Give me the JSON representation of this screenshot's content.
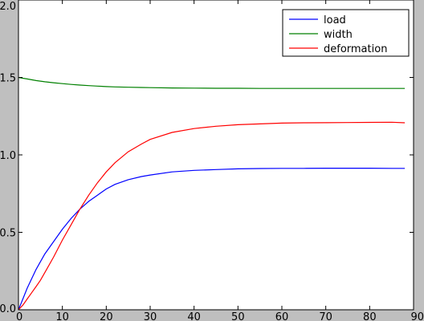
{
  "chart_data": {
    "type": "line",
    "title": "",
    "xlabel": "",
    "ylabel": "",
    "xlim": [
      0,
      90
    ],
    "ylim": [
      0.0,
      2.0
    ],
    "xticks": [
      0,
      10,
      20,
      30,
      40,
      50,
      60,
      70,
      80,
      90
    ],
    "yticks": [
      0.0,
      0.5,
      1.0,
      1.5,
      2.0
    ],
    "xtick_labels": [
      "0",
      "10",
      "20",
      "30",
      "40",
      "50",
      "60",
      "70",
      "80",
      "90"
    ],
    "ytick_labels": [
      "0.0",
      "0.5",
      "1.0",
      "1.5",
      "2.0"
    ],
    "grid": false,
    "legend_position": "top-right",
    "x": [
      0,
      1,
      2,
      3,
      4,
      5,
      6,
      8,
      10,
      12,
      14,
      16,
      18,
      20,
      22,
      25,
      28,
      30,
      35,
      40,
      45,
      50,
      55,
      60,
      65,
      70,
      75,
      80,
      85,
      88
    ],
    "series": [
      {
        "name": "load",
        "color": "#0000ff",
        "values": [
          0.0,
          0.07,
          0.14,
          0.2,
          0.26,
          0.31,
          0.36,
          0.44,
          0.52,
          0.59,
          0.65,
          0.7,
          0.74,
          0.78,
          0.81,
          0.84,
          0.86,
          0.87,
          0.89,
          0.9,
          0.905,
          0.91,
          0.912,
          0.913,
          0.913,
          0.914,
          0.914,
          0.914,
          0.913,
          0.913
        ]
      },
      {
        "name": "width",
        "color": "#008000",
        "values": [
          1.5,
          1.495,
          1.49,
          1.485,
          1.48,
          1.476,
          1.472,
          1.466,
          1.46,
          1.455,
          1.451,
          1.447,
          1.444,
          1.441,
          1.439,
          1.437,
          1.435,
          1.434,
          1.432,
          1.431,
          1.43,
          1.43,
          1.429,
          1.429,
          1.429,
          1.429,
          1.429,
          1.429,
          1.429,
          1.429
        ]
      },
      {
        "name": "deformation",
        "color": "#ff0000",
        "values": [
          0.0,
          0.03,
          0.07,
          0.11,
          0.15,
          0.19,
          0.24,
          0.34,
          0.45,
          0.55,
          0.65,
          0.74,
          0.82,
          0.89,
          0.95,
          1.02,
          1.07,
          1.1,
          1.145,
          1.17,
          1.185,
          1.195,
          1.2,
          1.205,
          1.207,
          1.208,
          1.209,
          1.21,
          1.211,
          1.207
        ]
      }
    ]
  }
}
